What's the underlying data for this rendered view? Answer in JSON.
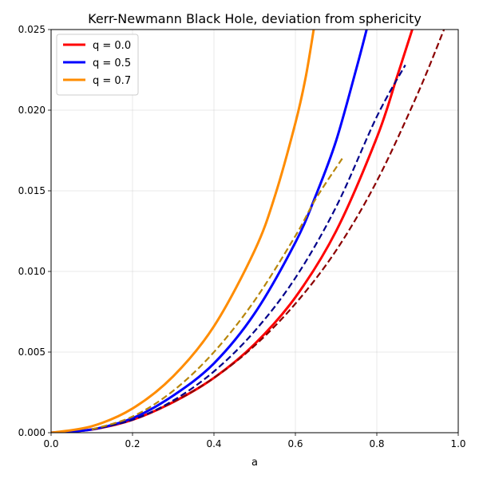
{
  "chart_data": {
    "type": "line",
    "title": "Kerr-Newmann Black Hole, deviation from sphericity",
    "xlabel": "a",
    "ylabel": "",
    "xlim": [
      0.0,
      1.0
    ],
    "ylim": [
      0.0,
      0.025
    ],
    "xticks": [
      "0.0",
      "0.2",
      "0.4",
      "0.6",
      "0.8",
      "1.0"
    ],
    "yticks": [
      "0.000",
      "0.005",
      "0.010",
      "0.015",
      "0.020",
      "0.025"
    ],
    "grid": true,
    "legend_position": "top-left",
    "series": [
      {
        "name": "q = 0.0",
        "color": "#ff0000",
        "style": "solid",
        "x": [
          0.0,
          0.1,
          0.2,
          0.3,
          0.4,
          0.5,
          0.6,
          0.7,
          0.8,
          0.85,
          0.887
        ],
        "y": [
          0.0,
          0.0002,
          0.0008,
          0.0019,
          0.0034,
          0.0055,
          0.0084,
          0.0125,
          0.0183,
          0.0221,
          0.025
        ]
      },
      {
        "name": "q = 0.5",
        "color": "#0000ff",
        "style": "solid",
        "x": [
          0.0,
          0.1,
          0.2,
          0.3,
          0.4,
          0.5,
          0.6,
          0.65,
          0.7,
          0.75,
          0.775
        ],
        "y": [
          0.0,
          0.0002,
          0.0009,
          0.0023,
          0.0043,
          0.0074,
          0.0118,
          0.0147,
          0.0181,
          0.0226,
          0.025
        ]
      },
      {
        "name": "q = 0.7",
        "color": "#ff8c00",
        "style": "solid",
        "x": [
          0.0,
          0.1,
          0.2,
          0.3,
          0.4,
          0.5,
          0.55,
          0.6,
          0.625,
          0.645
        ],
        "y": [
          0.0,
          0.0004,
          0.0015,
          0.0035,
          0.0066,
          0.0113,
          0.0147,
          0.0192,
          0.022,
          0.025
        ]
      },
      {
        "name": "",
        "color": "#8b0000",
        "style": "dashed",
        "x": [
          0.1,
          0.2,
          0.3,
          0.4,
          0.5,
          0.6,
          0.7,
          0.8,
          0.9,
          0.965
        ],
        "y": [
          0.0002,
          0.0008,
          0.0019,
          0.0034,
          0.0054,
          0.008,
          0.0113,
          0.0156,
          0.021,
          0.025
        ]
      },
      {
        "name": "",
        "color": "#00008b",
        "style": "dashed",
        "x": [
          0.1,
          0.2,
          0.3,
          0.4,
          0.5,
          0.6,
          0.7,
          0.8,
          0.87
        ],
        "y": [
          0.0002,
          0.0008,
          0.002,
          0.0038,
          0.0063,
          0.0096,
          0.014,
          0.0196,
          0.0228
        ]
      },
      {
        "name": "",
        "color": "#b8860b",
        "style": "dashed",
        "x": [
          0.1,
          0.2,
          0.3,
          0.4,
          0.5,
          0.6,
          0.65,
          0.715
        ],
        "y": [
          0.0002,
          0.001,
          0.0026,
          0.005,
          0.0082,
          0.0122,
          0.0145,
          0.017
        ]
      }
    ]
  }
}
